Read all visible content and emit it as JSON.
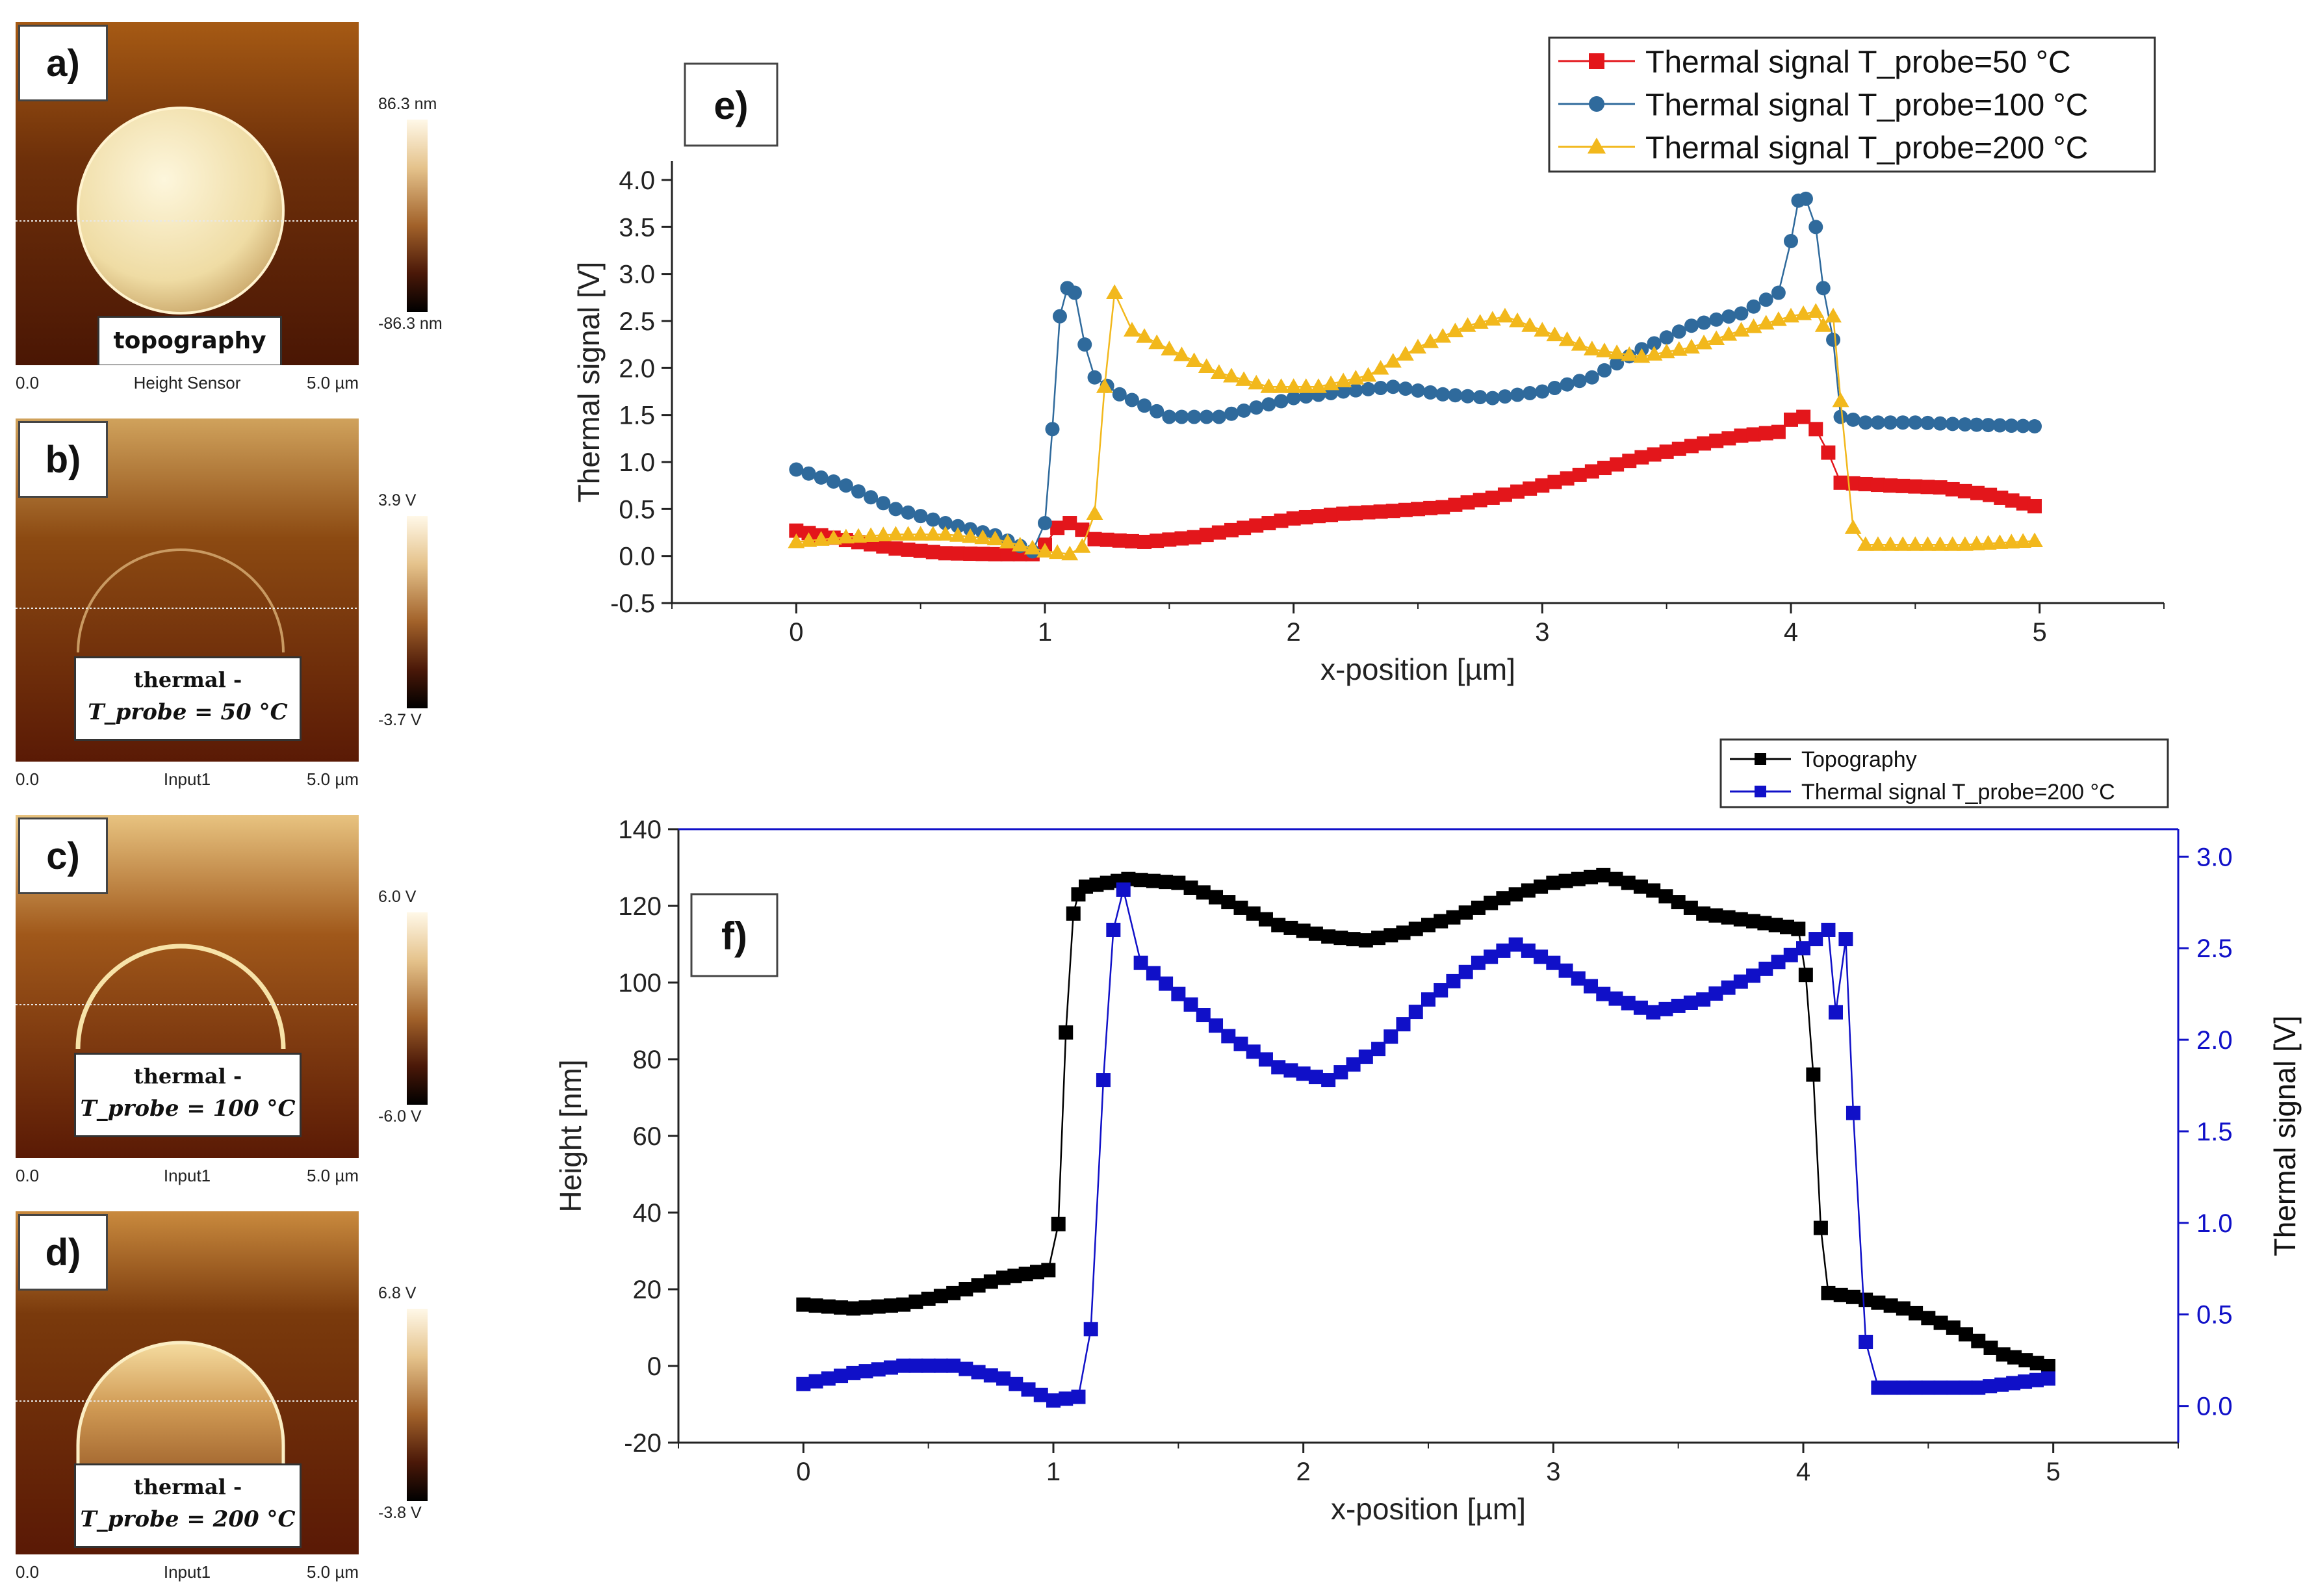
{
  "panels": [
    {
      "letter": "a)",
      "caption": "topography",
      "cb_max": "86.3 nm",
      "cb_min": "-86.3 nm",
      "axis_left": "0.0",
      "axis_mid": "Height Sensor",
      "axis_right": "5.0 µm",
      "style": "topo"
    },
    {
      "letter": "b)",
      "caption_line1": "thermal -",
      "caption_line2": "T_probe = 50 °C",
      "cb_max": "3.9 V",
      "cb_min": "-3.7 V",
      "axis_left": "0.0",
      "axis_mid": "Input1",
      "axis_right": "5.0 µm",
      "style": "faint"
    },
    {
      "letter": "c)",
      "caption_line1": "thermal -",
      "caption_line2": "T_probe = 100 °C",
      "cb_max": "6.0 V",
      "cb_min": "-6.0 V",
      "axis_left": "0.0",
      "axis_mid": "Input1",
      "axis_right": "5.0 µm",
      "style": "ring"
    },
    {
      "letter": "d)",
      "caption_line1": "thermal -",
      "caption_line2": "T_probe = 200 °C",
      "cb_max": "6.8 V",
      "cb_min": "-3.8 V",
      "axis_left": "0.0",
      "axis_mid": "Input1",
      "axis_right": "5.0 µm",
      "style": "filled"
    }
  ],
  "chart_data": [
    {
      "id": "e",
      "type": "line",
      "label": "e)",
      "xlabel": "x-position [µm]",
      "ylabel": "Thermal signal [V]",
      "xlim": [
        -0.5,
        5.5
      ],
      "ylim": [
        -0.5,
        4.2
      ],
      "xticks": [
        0,
        1,
        2,
        3,
        4,
        5
      ],
      "yticks": [
        -0.5,
        0.0,
        0.5,
        1.0,
        1.5,
        2.0,
        2.5,
        3.0,
        3.5,
        4.0
      ],
      "legend_position": "top-right",
      "series": [
        {
          "name": "Thermal signal T_probe=50 °C",
          "color": "#e3161b",
          "marker": "square",
          "x": [
            0,
            0.2,
            0.4,
            0.6,
            0.8,
            0.95,
            1.0,
            1.05,
            1.1,
            1.15,
            1.2,
            1.4,
            1.6,
            1.8,
            2.0,
            2.2,
            2.4,
            2.6,
            2.8,
            3.0,
            3.2,
            3.4,
            3.6,
            3.8,
            3.95,
            4.0,
            4.05,
            4.1,
            4.15,
            4.2,
            4.4,
            4.6,
            4.8,
            4.98
          ],
          "y": [
            0.27,
            0.17,
            0.08,
            0.03,
            0.02,
            0.02,
            0.12,
            0.3,
            0.35,
            0.28,
            0.18,
            0.15,
            0.2,
            0.3,
            0.4,
            0.45,
            0.48,
            0.52,
            0.62,
            0.75,
            0.9,
            1.05,
            1.17,
            1.28,
            1.32,
            1.45,
            1.48,
            1.35,
            1.1,
            0.78,
            0.75,
            0.73,
            0.65,
            0.53
          ]
        },
        {
          "name": "Thermal signal T_probe=100 °C",
          "color": "#2f6a9c",
          "marker": "circle",
          "x": [
            0,
            0.2,
            0.4,
            0.6,
            0.8,
            0.95,
            1.0,
            1.03,
            1.06,
            1.09,
            1.12,
            1.16,
            1.2,
            1.3,
            1.5,
            1.7,
            2.0,
            2.2,
            2.4,
            2.6,
            2.8,
            3.0,
            3.2,
            3.4,
            3.6,
            3.8,
            3.95,
            4.0,
            4.03,
            4.06,
            4.1,
            4.13,
            4.17,
            4.2,
            4.3,
            4.5,
            4.7,
            4.98
          ],
          "y": [
            0.92,
            0.75,
            0.5,
            0.35,
            0.22,
            0.05,
            0.35,
            1.35,
            2.55,
            2.85,
            2.8,
            2.25,
            1.9,
            1.72,
            1.48,
            1.48,
            1.68,
            1.75,
            1.8,
            1.72,
            1.68,
            1.75,
            1.9,
            2.2,
            2.45,
            2.58,
            2.8,
            3.35,
            3.78,
            3.8,
            3.5,
            2.85,
            2.3,
            1.48,
            1.42,
            1.42,
            1.4,
            1.38
          ]
        },
        {
          "name": "Thermal signal T_probe=200 °C",
          "color": "#f2b81c",
          "marker": "triangle",
          "x": [
            0,
            0.2,
            0.4,
            0.6,
            0.8,
            1.0,
            1.1,
            1.15,
            1.2,
            1.24,
            1.28,
            1.35,
            1.5,
            1.7,
            1.9,
            2.1,
            2.3,
            2.5,
            2.7,
            2.85,
            3.0,
            3.2,
            3.4,
            3.6,
            3.8,
            4.0,
            4.1,
            4.13,
            4.17,
            4.2,
            4.25,
            4.3,
            4.5,
            4.7,
            4.98
          ],
          "y": [
            0.15,
            0.2,
            0.23,
            0.23,
            0.18,
            0.05,
            0.02,
            0.1,
            0.45,
            1.8,
            2.8,
            2.4,
            2.2,
            1.95,
            1.8,
            1.8,
            1.92,
            2.22,
            2.45,
            2.55,
            2.4,
            2.2,
            2.12,
            2.22,
            2.4,
            2.55,
            2.6,
            2.45,
            2.55,
            1.65,
            0.3,
            0.12,
            0.12,
            0.12,
            0.16
          ]
        }
      ]
    },
    {
      "id": "f",
      "type": "line",
      "label": "f)",
      "xlabel": "x-position [µm]",
      "ylabel": "Height [nm]",
      "ylabel_right": "Thermal signal [V]",
      "xlim": [
        -0.5,
        5.5
      ],
      "ylim": [
        -20,
        140
      ],
      "ylim_right": [
        -0.2,
        3.15
      ],
      "xticks": [
        0,
        1,
        2,
        3,
        4,
        5
      ],
      "yticks": [
        -20,
        0,
        20,
        40,
        60,
        80,
        100,
        120,
        140
      ],
      "yticks_right": [
        0.0,
        0.5,
        1.0,
        1.5,
        2.0,
        2.5,
        3.0
      ],
      "legend_position": "top-right",
      "series": [
        {
          "name": "Topography",
          "color": "#000000",
          "marker": "square",
          "axis": "left",
          "x": [
            0,
            0.2,
            0.4,
            0.6,
            0.8,
            0.98,
            1.02,
            1.05,
            1.08,
            1.1,
            1.13,
            1.3,
            1.5,
            1.7,
            1.9,
            2.1,
            2.25,
            2.4,
            2.6,
            2.8,
            3.0,
            3.2,
            3.4,
            3.6,
            3.8,
            3.98,
            4.01,
            4.04,
            4.07,
            4.1,
            4.2,
            4.4,
            4.6,
            4.8,
            4.98
          ],
          "y": [
            16,
            15,
            16,
            19,
            23,
            25,
            37,
            87,
            118,
            123,
            125,
            127,
            126,
            121,
            115,
            112,
            111,
            113,
            117,
            122,
            126,
            128,
            124,
            118,
            116,
            114,
            102,
            76,
            36,
            19,
            18,
            15,
            10,
            3,
            0
          ]
        },
        {
          "name": "Thermal signal T_probe=200 °C",
          "color": "#1010c8",
          "marker": "square",
          "axis": "right",
          "x": [
            0,
            0.2,
            0.4,
            0.6,
            0.8,
            1.0,
            1.1,
            1.15,
            1.2,
            1.24,
            1.28,
            1.35,
            1.5,
            1.7,
            1.9,
            2.1,
            2.3,
            2.5,
            2.7,
            2.85,
            3.0,
            3.2,
            3.4,
            3.6,
            3.8,
            4.0,
            4.1,
            4.13,
            4.17,
            4.2,
            4.25,
            4.3,
            4.5,
            4.7,
            4.98
          ],
          "y": [
            0.12,
            0.18,
            0.22,
            0.22,
            0.15,
            0.03,
            0.05,
            0.42,
            1.78,
            2.6,
            2.82,
            2.42,
            2.25,
            2.02,
            1.85,
            1.78,
            1.95,
            2.22,
            2.42,
            2.52,
            2.42,
            2.25,
            2.15,
            2.22,
            2.35,
            2.5,
            2.6,
            2.15,
            2.55,
            1.6,
            0.35,
            0.1,
            0.1,
            0.1,
            0.15
          ]
        }
      ]
    }
  ]
}
